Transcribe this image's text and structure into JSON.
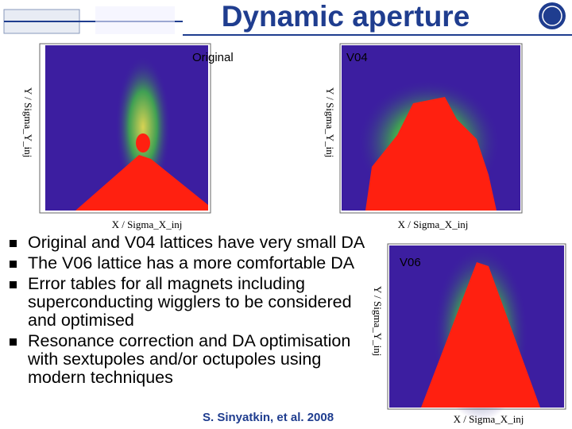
{
  "header": {
    "title": "Dynamic aperture"
  },
  "plots": [
    {
      "label": "Original",
      "x_axis": "X / Sigma_X_inj",
      "y_axis": "Y / Sigma_Y_inj"
    },
    {
      "label": "V04",
      "x_axis": "X / Sigma_X_inj",
      "y_axis": "Y / Sigma_Y_inj"
    },
    {
      "label": "V06",
      "x_axis": "X / Sigma_X_inj",
      "y_axis": "Y / Sigma_Y_inj"
    }
  ],
  "bullets": [
    "Original and V04 lattices have very small DA",
    "The V06 lattice has a more comfortable DA",
    "Error tables for all magnets including superconducting wigglers to be considered and optimised",
    "Resonance correction and DA optimisation with sextupoles and/or octupoles using modern techniques"
  ],
  "citation": "S. Sinyatkin, et al. 2008"
}
